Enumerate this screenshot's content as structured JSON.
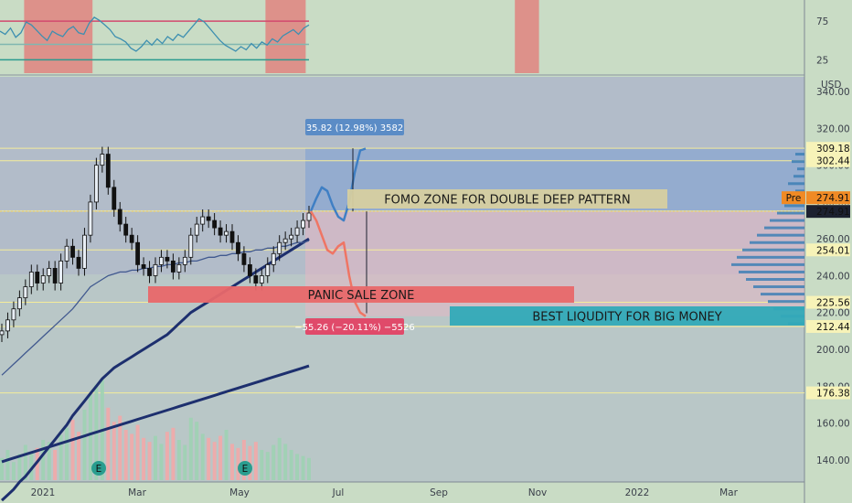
{
  "currency": "USD",
  "chart_data": [
    {
      "type": "line",
      "panel": "oscillator",
      "y_ticks": [
        75,
        25
      ],
      "ylim": [
        10,
        100
      ],
      "levels": [
        75,
        45,
        25
      ],
      "series": [
        {
          "values": [
            62,
            58,
            66,
            54,
            60,
            74,
            70,
            63,
            56,
            50,
            62,
            58,
            55,
            64,
            68,
            60,
            58,
            72,
            80,
            76,
            70,
            64,
            55,
            52,
            48,
            40,
            36,
            42,
            50,
            44,
            52,
            46,
            55,
            50,
            58,
            54,
            62,
            70,
            78,
            74,
            66,
            58,
            50,
            44,
            40,
            36,
            42,
            38,
            46,
            40,
            48,
            44,
            52,
            48,
            56,
            60,
            64,
            58,
            66,
            70
          ]
        }
      ],
      "highlight_zones": [
        [
          0.03,
          0.115
        ],
        [
          0.33,
          0.38
        ],
        [
          0.64,
          0.67
        ]
      ],
      "color": "#3d8fb0"
    },
    {
      "type": "candlestick",
      "panel": "price",
      "x_ticks": [
        "2021",
        "Mar",
        "May",
        "Jul",
        "Sep",
        "Nov",
        "2022",
        "Mar"
      ],
      "y_ticks": [
        340,
        320,
        300,
        280,
        260,
        240,
        220,
        200,
        180,
        160,
        140
      ],
      "ylim": [
        128,
        348
      ],
      "price_levels": [
        309.18,
        302.44,
        275.12,
        254.01,
        225.56,
        212.44,
        176.38
      ],
      "last_price": 274.91,
      "pre_market": {
        "label": "Pre",
        "value": "274.91"
      },
      "close": [
        210,
        216,
        222,
        228,
        234,
        242,
        236,
        240,
        244,
        236,
        248,
        256,
        250,
        244,
        262,
        280,
        300,
        306,
        288,
        276,
        268,
        262,
        258,
        246,
        244,
        240,
        246,
        250,
        248,
        242,
        246,
        250,
        262,
        268,
        272,
        270,
        266,
        262,
        264,
        258,
        252,
        246,
        240,
        236,
        240,
        246,
        252,
        258,
        260,
        262,
        266,
        270,
        274
      ],
      "moving_averages": [
        {
          "name": "",
          "color": "#1d2f6e",
          "values": [
            118,
            121,
            124,
            128,
            131,
            135,
            139,
            143,
            147,
            151,
            155,
            159,
            164,
            168,
            172,
            176,
            180,
            184,
            187,
            190,
            192,
            194,
            196,
            198,
            200,
            202,
            204,
            206,
            208,
            211,
            214,
            217,
            220,
            222,
            224,
            226,
            228,
            230,
            232,
            234,
            236,
            238,
            240,
            242,
            244,
            246,
            248,
            250,
            252,
            254,
            256,
            258,
            260
          ]
        },
        {
          "name": "",
          "color": "#41598f",
          "values": [
            186,
            189,
            192,
            195,
            198,
            201,
            204,
            207,
            210,
            213,
            216,
            219,
            222,
            226,
            230,
            234,
            236,
            238,
            240,
            241,
            242,
            242,
            243,
            243,
            244,
            244,
            245,
            245,
            246,
            246,
            247,
            247,
            248,
            248,
            249,
            250,
            250,
            251,
            251,
            252,
            252,
            253,
            253,
            254,
            254,
            255,
            255,
            256,
            256,
            257,
            258,
            258,
            259
          ]
        },
        {
          "name": "",
          "color": "#1d2f6e",
          "values": [
            139,
            140,
            141,
            142,
            143,
            144,
            145,
            146,
            147,
            148,
            149,
            150,
            151,
            152,
            153,
            154,
            155,
            156,
            157,
            158,
            159,
            160,
            161,
            162,
            163,
            164,
            165,
            166,
            167,
            168,
            169,
            170,
            171,
            172,
            173,
            174,
            175,
            176,
            177,
            178,
            179,
            180,
            181,
            182,
            183,
            184,
            185,
            186,
            187,
            188,
            189,
            190,
            191
          ]
        }
      ],
      "volume": [
        22,
        30,
        18,
        26,
        35,
        28,
        32,
        40,
        38,
        30,
        45,
        52,
        60,
        48,
        70,
        85,
        95,
        100,
        72,
        58,
        64,
        50,
        46,
        55,
        42,
        38,
        44,
        36,
        48,
        52,
        40,
        35,
        62,
        58,
        46,
        42,
        38,
        44,
        50,
        36,
        32,
        40,
        34,
        38,
        30,
        28,
        35,
        42,
        36,
        30,
        26,
        24,
        22
      ],
      "projection": [
        {
          "name": "",
          "color": "#3f7fc4",
          "values": [
            275,
            282,
            288,
            286,
            278,
            272,
            270,
            280,
            296,
            308,
            309
          ]
        },
        {
          "name": "",
          "color": "#ef7564",
          "values": [
            275,
            270,
            262,
            254,
            252,
            256,
            258,
            240,
            226,
            220,
            218
          ]
        }
      ],
      "measurements": [
        {
          "label": "35.82 (12.98%) 3582",
          "color": "#5b8cc6"
        },
        {
          "label": "−55.26 (−20.11%) −5526",
          "color": "#e04a6a"
        }
      ],
      "annotations": [
        {
          "text": "FOMO ZONE FOR DOUBLE DEEP PATTERN",
          "fill": "#d6cfa0"
        },
        {
          "text": "PANIC SALE ZONE",
          "fill": "#e8686a"
        },
        {
          "text": "BEST LIQUDITY FOR BIG MONEY",
          "fill": "#31aab8"
        }
      ],
      "zones": [
        {
          "name": "",
          "top": 309.18,
          "bottom": 274.91,
          "color": "#7c9fd4"
        },
        {
          "name": "",
          "top": 274.91,
          "bottom": 218,
          "color": "#e5b6c2"
        }
      ],
      "volume_profile": [
        {
          "y": 306,
          "w": 10
        },
        {
          "y": 302,
          "w": 14
        },
        {
          "y": 298,
          "w": 8
        },
        {
          "y": 294,
          "w": 12
        },
        {
          "y": 290,
          "w": 18
        },
        {
          "y": 286,
          "w": 10
        },
        {
          "y": 282,
          "w": 14
        },
        {
          "y": 278,
          "w": 22
        },
        {
          "y": 274,
          "w": 30
        },
        {
          "y": 270,
          "w": 38
        },
        {
          "y": 266,
          "w": 44
        },
        {
          "y": 262,
          "w": 52
        },
        {
          "y": 258,
          "w": 60
        },
        {
          "y": 254,
          "w": 68
        },
        {
          "y": 250,
          "w": 74
        },
        {
          "y": 246,
          "w": 80
        },
        {
          "y": 242,
          "w": 72
        },
        {
          "y": 238,
          "w": 64
        },
        {
          "y": 234,
          "w": 56
        },
        {
          "y": 230,
          "w": 48
        },
        {
          "y": 226,
          "w": 40
        },
        {
          "y": 222,
          "w": 34
        },
        {
          "y": 218,
          "w": 26
        },
        {
          "y": 214,
          "w": 18
        }
      ],
      "earnings_markers": [
        "E",
        "E"
      ]
    }
  ]
}
